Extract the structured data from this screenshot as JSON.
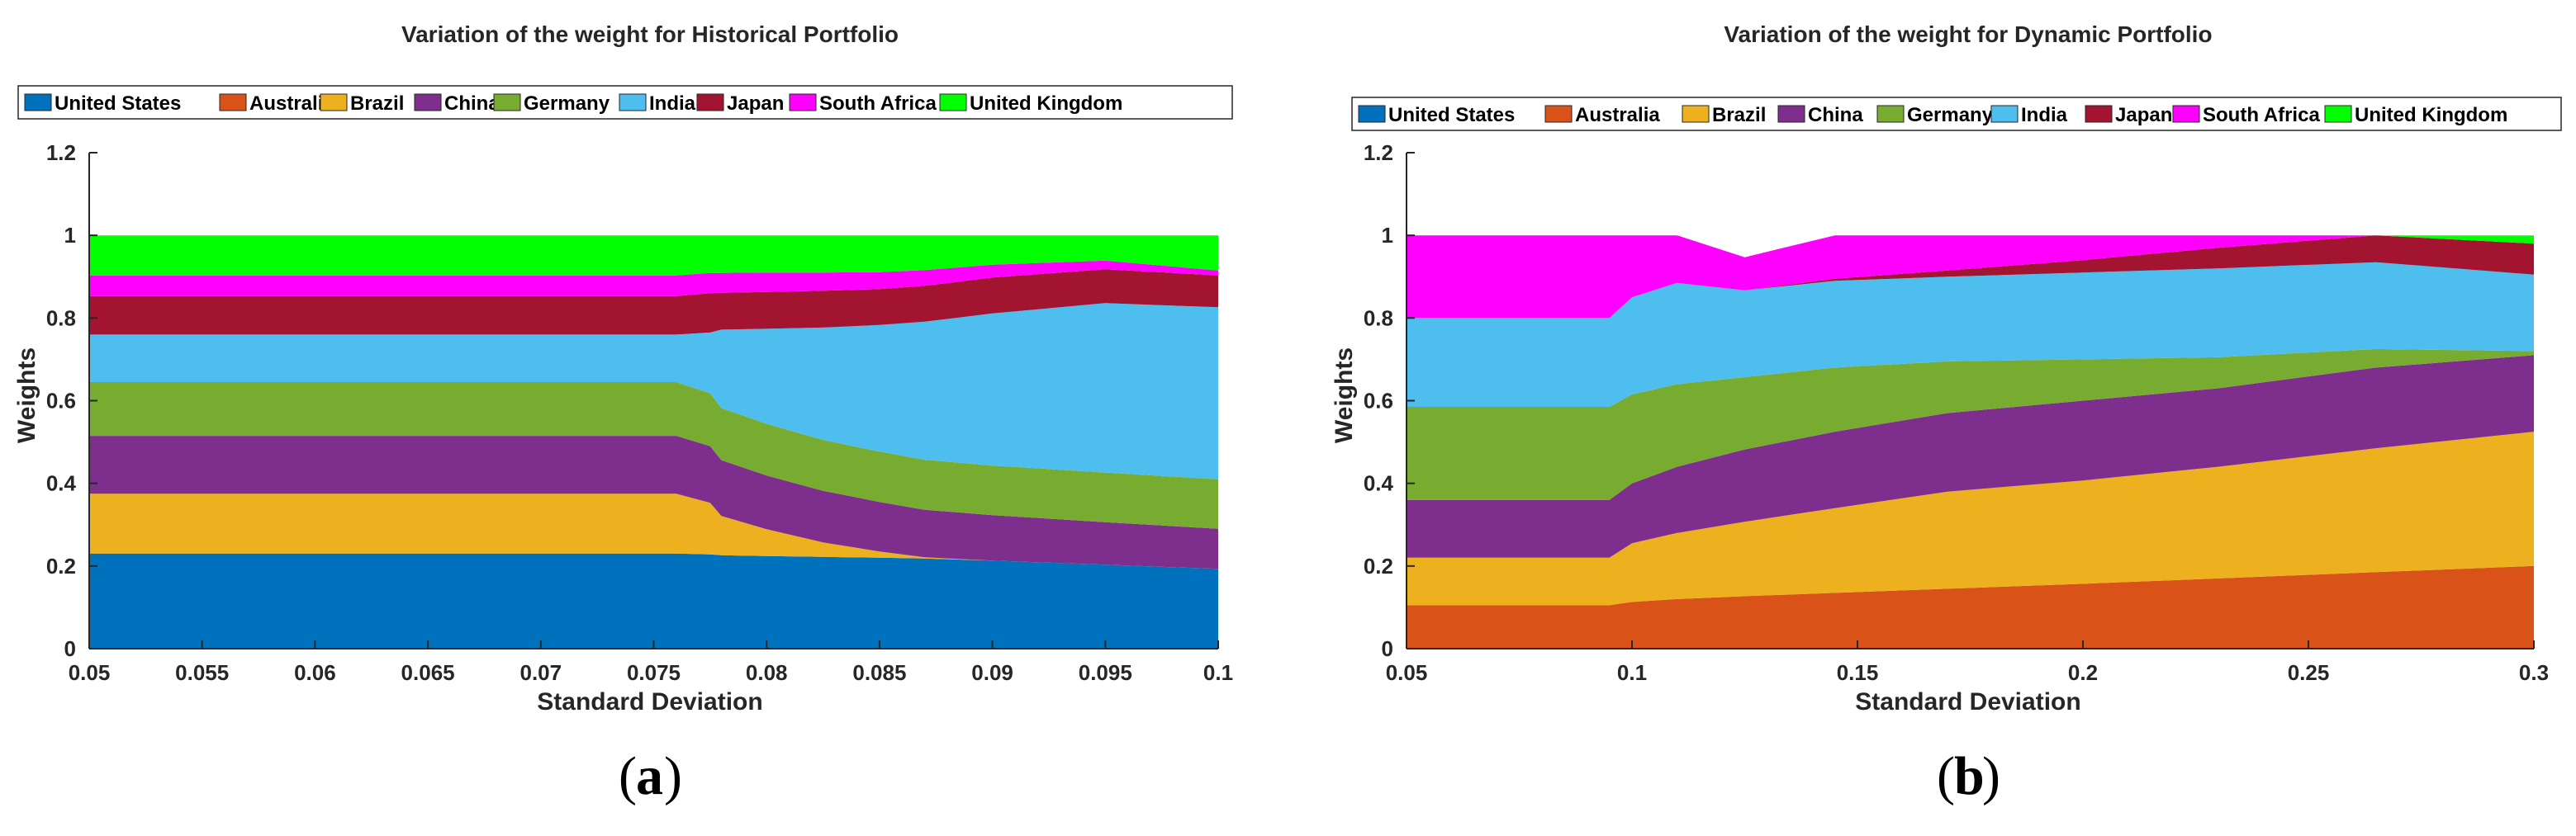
{
  "colors": {
    "United States": "#0072BD",
    "Australia": "#D95319",
    "Brazil": "#EDB120",
    "China": "#7E2F8E",
    "Germany": "#77AC30",
    "India": "#4DBEEE",
    "Japan": "#A2142F",
    "South Africa": "#FF00FF",
    "United Kingdom": "#00FF00"
  },
  "chart_data": [
    {
      "type": "area",
      "stacked": true,
      "panel_label": "a",
      "title": "Variation of the weight for Historical Portfolio",
      "xlabel": "Standard Deviation",
      "ylabel": "Weights",
      "xlim": [
        0.05,
        0.1
      ],
      "ylim": [
        0,
        1.2
      ],
      "xticks": [
        "0.05",
        "0.055",
        "0.06",
        "0.065",
        "0.07",
        "0.075",
        "0.08",
        "0.085",
        "0.09",
        "0.095",
        "0.1"
      ],
      "yticks": [
        "0",
        "0.2",
        "0.4",
        "0.6",
        "0.8",
        "1",
        "1.2"
      ],
      "legend": [
        "United States",
        "Australia",
        "Brazil",
        "China",
        "Germany",
        "India",
        "Japan",
        "South Africa",
        "United Kingdom"
      ],
      "legend_position": "top",
      "x": [
        0.05,
        0.076,
        0.0775,
        0.078,
        0.08,
        0.0825,
        0.085,
        0.087,
        0.09,
        0.095,
        0.1
      ],
      "series": [
        {
          "name": "United States",
          "values": [
            0.23,
            0.23,
            0.228,
            0.226,
            0.224,
            0.222,
            0.22,
            0.218,
            0.213,
            0.203,
            0.193
          ]
        },
        {
          "name": "Australia",
          "values": [
            0,
            0,
            0,
            0,
            0,
            0,
            0,
            0,
            0,
            0,
            0
          ]
        },
        {
          "name": "Brazil",
          "values": [
            0.145,
            0.145,
            0.125,
            0.095,
            0.065,
            0.035,
            0.015,
            0.003,
            0,
            0,
            0
          ]
        },
        {
          "name": "China",
          "values": [
            0.14,
            0.14,
            0.137,
            0.135,
            0.13,
            0.125,
            0.12,
            0.115,
            0.11,
            0.103,
            0.097
          ]
        },
        {
          "name": "Germany",
          "values": [
            0.13,
            0.13,
            0.128,
            0.126,
            0.125,
            0.123,
            0.122,
            0.121,
            0.12,
            0.12,
            0.12
          ]
        },
        {
          "name": "India",
          "values": [
            0.115,
            0.115,
            0.147,
            0.19,
            0.23,
            0.272,
            0.306,
            0.334,
            0.368,
            0.41,
            0.416
          ]
        },
        {
          "name": "Japan",
          "values": [
            0.093,
            0.093,
            0.095,
            0.089,
            0.089,
            0.089,
            0.087,
            0.087,
            0.087,
            0.082,
            0.077
          ]
        },
        {
          "name": "South Africa",
          "values": [
            0.05,
            0.05,
            0.049,
            0.048,
            0.047,
            0.044,
            0.041,
            0.038,
            0.031,
            0.021,
            0.012
          ]
        },
        {
          "name": "United Kingdom",
          "values": [
            0.097,
            0.097,
            0.091,
            0.091,
            0.09,
            0.09,
            0.089,
            0.084,
            0.071,
            0.061,
            0.085
          ]
        }
      ]
    },
    {
      "type": "area",
      "stacked": true,
      "panel_label": "b",
      "title": "Variation of the weight for Dynamic Portfolio",
      "xlabel": "Standard Deviation",
      "ylabel": "Weights",
      "xlim": [
        0.05,
        0.3
      ],
      "ylim": [
        0,
        1.2
      ],
      "xticks": [
        "0.05",
        "0.1",
        "0.15",
        "0.2",
        "0.25",
        "0.3"
      ],
      "yticks": [
        "0",
        "0.2",
        "0.4",
        "0.6",
        "0.8",
        "1",
        "1.2"
      ],
      "legend": [
        "United States",
        "Australia",
        "Brazil",
        "China",
        "Germany",
        "India",
        "Japan",
        "South Africa",
        "United Kingdom"
      ],
      "legend_position": "top",
      "x": [
        0.05,
        0.095,
        0.1,
        0.11,
        0.125,
        0.145,
        0.17,
        0.2,
        0.23,
        0.265,
        0.3
      ],
      "series": [
        {
          "name": "United States",
          "values": [
            0,
            0,
            0,
            0,
            0,
            0,
            0,
            0,
            0,
            0,
            0
          ]
        },
        {
          "name": "Australia",
          "values": [
            0.105,
            0.105,
            0.113,
            0.12,
            0.127,
            0.135,
            0.145,
            0.157,
            0.17,
            0.185,
            0.2
          ]
        },
        {
          "name": "Brazil",
          "values": [
            0.115,
            0.115,
            0.142,
            0.16,
            0.18,
            0.205,
            0.235,
            0.25,
            0.27,
            0.3,
            0.325
          ]
        },
        {
          "name": "China",
          "values": [
            0.14,
            0.14,
            0.145,
            0.16,
            0.175,
            0.185,
            0.19,
            0.193,
            0.19,
            0.195,
            0.185
          ]
        },
        {
          "name": "Germany",
          "values": [
            0.225,
            0.225,
            0.215,
            0.2,
            0.175,
            0.155,
            0.125,
            0.1,
            0.075,
            0.045,
            0.01
          ]
        },
        {
          "name": "India",
          "values": [
            0.215,
            0.215,
            0.235,
            0.245,
            0.21,
            0.21,
            0.205,
            0.21,
            0.215,
            0.21,
            0.185
          ]
        },
        {
          "name": "Japan",
          "values": [
            0,
            0,
            0,
            0,
            0,
            0.005,
            0.015,
            0.03,
            0.05,
            0.065,
            0.075
          ]
        },
        {
          "name": "South Africa",
          "values": [
            0.2,
            0.2,
            0.15,
            0.115,
            0.08,
            0.105,
            0.085,
            0.06,
            0.03,
            0,
            0
          ]
        },
        {
          "name": "United Kingdom",
          "values": [
            0,
            0,
            0,
            0,
            0,
            0,
            0,
            0,
            0,
            0,
            0.02
          ]
        }
      ]
    }
  ]
}
